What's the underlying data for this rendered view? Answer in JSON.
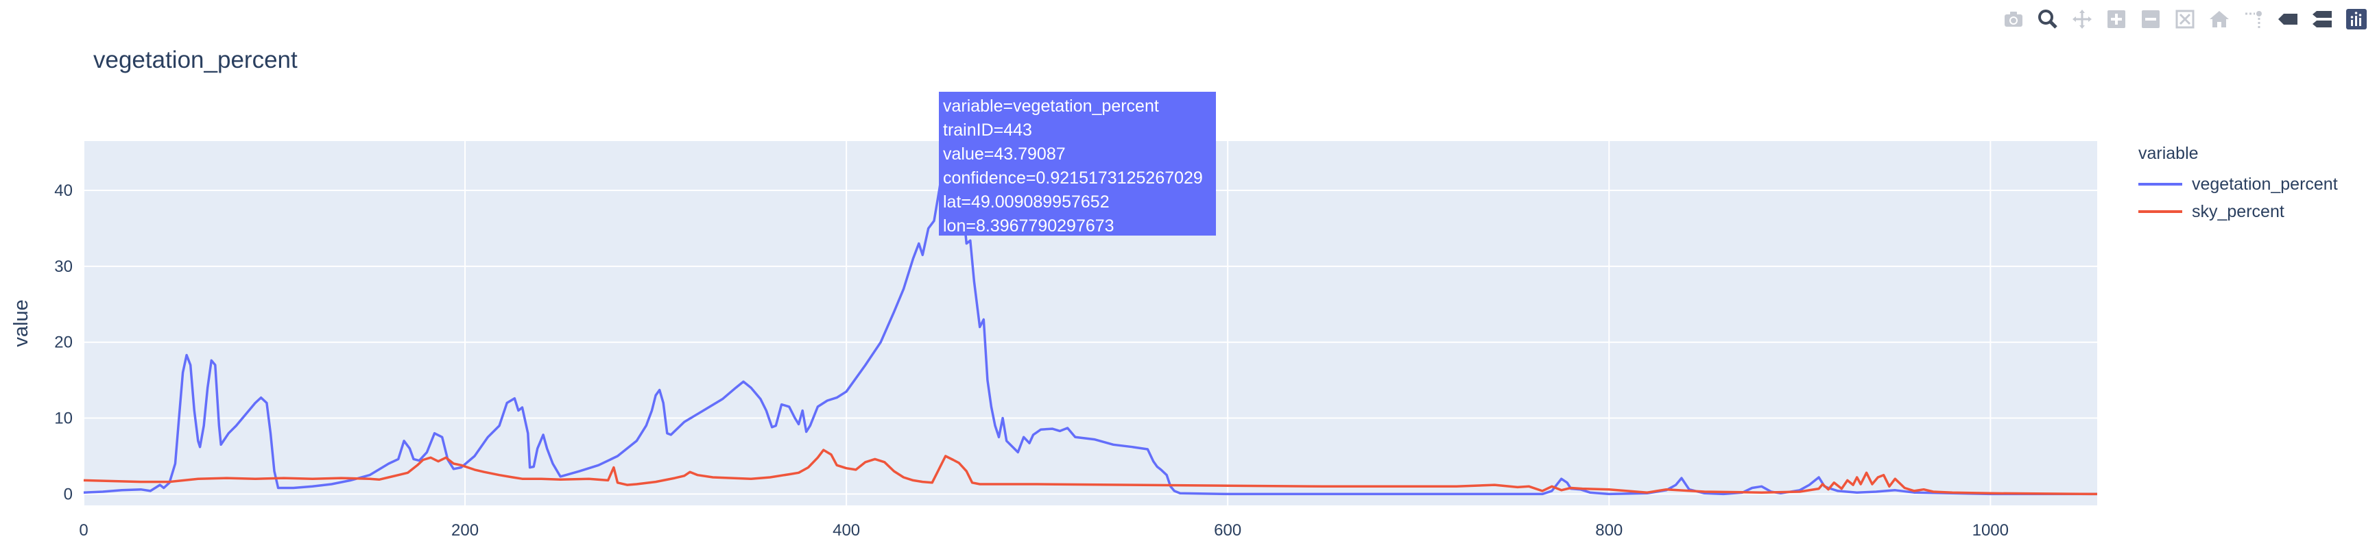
{
  "chart_data": {
    "type": "line",
    "title": "vegetation_percent",
    "xlabel": "",
    "ylabel": "value",
    "xlim": [
      0,
      1056
    ],
    "ylim": [
      -1.5,
      46.5
    ],
    "x_ticks": [
      0,
      200,
      400,
      600,
      800,
      1000
    ],
    "y_ticks": [
      0,
      10,
      20,
      30,
      40
    ],
    "legend_title": "variable",
    "legend_position": "right",
    "grid": true,
    "series": [
      {
        "name": "vegetation_percent",
        "color": "#636efa",
        "points": [
          [
            0,
            0.2
          ],
          [
            10,
            0.3
          ],
          [
            20,
            0.5
          ],
          [
            30,
            0.6
          ],
          [
            35,
            0.4
          ],
          [
            40,
            1.2
          ],
          [
            42,
            0.8
          ],
          [
            45,
            1.5
          ],
          [
            48,
            4
          ],
          [
            50,
            10
          ],
          [
            52,
            16
          ],
          [
            54,
            18.3
          ],
          [
            56,
            17
          ],
          [
            58,
            11
          ],
          [
            60,
            7
          ],
          [
            61,
            6.2
          ],
          [
            63,
            9
          ],
          [
            65,
            14
          ],
          [
            67,
            17.6
          ],
          [
            69,
            17
          ],
          [
            70,
            13
          ],
          [
            71,
            9
          ],
          [
            72,
            6.5
          ],
          [
            76,
            8
          ],
          [
            80,
            9
          ],
          [
            85,
            10.5
          ],
          [
            90,
            12
          ],
          [
            93,
            12.7
          ],
          [
            96,
            12
          ],
          [
            98,
            8
          ],
          [
            100,
            3
          ],
          [
            102,
            0.8
          ],
          [
            110,
            0.8
          ],
          [
            120,
            1.0
          ],
          [
            130,
            1.3
          ],
          [
            140,
            1.8
          ],
          [
            150,
            2.5
          ],
          [
            160,
            4
          ],
          [
            165,
            4.6
          ],
          [
            168,
            7
          ],
          [
            171,
            6
          ],
          [
            173,
            4.6
          ],
          [
            176,
            4.4
          ],
          [
            180,
            5.5
          ],
          [
            184,
            8
          ],
          [
            188,
            7.5
          ],
          [
            191,
            4.5
          ],
          [
            194,
            3.3
          ],
          [
            198,
            3.5
          ],
          [
            205,
            5
          ],
          [
            212,
            7.5
          ],
          [
            218,
            9
          ],
          [
            222,
            12
          ],
          [
            226,
            12.6
          ],
          [
            228,
            11
          ],
          [
            230,
            11.4
          ],
          [
            233,
            8
          ],
          [
            234,
            3.5
          ],
          [
            236,
            3.6
          ],
          [
            238,
            6
          ],
          [
            241,
            7.8
          ],
          [
            243,
            6
          ],
          [
            246,
            4
          ],
          [
            250,
            2.3
          ],
          [
            260,
            3
          ],
          [
            270,
            3.8
          ],
          [
            280,
            5
          ],
          [
            290,
            7
          ],
          [
            295,
            9
          ],
          [
            298,
            11
          ],
          [
            300,
            13
          ],
          [
            302,
            13.7
          ],
          [
            304,
            12
          ],
          [
            306,
            8
          ],
          [
            308,
            7.8
          ],
          [
            315,
            9.5
          ],
          [
            325,
            11
          ],
          [
            335,
            12.5
          ],
          [
            342,
            14
          ],
          [
            346,
            14.8
          ],
          [
            350,
            14
          ],
          [
            355,
            12.5
          ],
          [
            358,
            11
          ],
          [
            361,
            8.8
          ],
          [
            363,
            9
          ],
          [
            366,
            11.8
          ],
          [
            370,
            11.5
          ],
          [
            373,
            10
          ],
          [
            375,
            9.2
          ],
          [
            377,
            11
          ],
          [
            379,
            8.2
          ],
          [
            381,
            9
          ],
          [
            385,
            11.5
          ],
          [
            390,
            12.3
          ],
          [
            395,
            12.7
          ],
          [
            400,
            13.5
          ],
          [
            410,
            17
          ],
          [
            418,
            20
          ],
          [
            425,
            24
          ],
          [
            430,
            27
          ],
          [
            435,
            31
          ],
          [
            438,
            33
          ],
          [
            440,
            31.5
          ],
          [
            443,
            35
          ],
          [
            446,
            36
          ],
          [
            448,
            39
          ],
          [
            450,
            42
          ],
          [
            453,
            43.8
          ],
          [
            455,
            41
          ],
          [
            458,
            39
          ],
          [
            461,
            38
          ],
          [
            463,
            33
          ],
          [
            465,
            33.4
          ],
          [
            467,
            28
          ],
          [
            470,
            22
          ],
          [
            472,
            23
          ],
          [
            474,
            15
          ],
          [
            476,
            11.5
          ],
          [
            478,
            9
          ],
          [
            480,
            7.5
          ],
          [
            482,
            10
          ],
          [
            484,
            7
          ],
          [
            488,
            6
          ],
          [
            490,
            5.5
          ],
          [
            493,
            7.5
          ],
          [
            496,
            6.7
          ],
          [
            498,
            7.8
          ],
          [
            502,
            8.5
          ],
          [
            508,
            8.6
          ],
          [
            512,
            8.3
          ],
          [
            516,
            8.7
          ],
          [
            520,
            7.5
          ],
          [
            530,
            7.2
          ],
          [
            540,
            6.5
          ],
          [
            550,
            6.2
          ],
          [
            558,
            5.9
          ],
          [
            561,
            4.3
          ],
          [
            563,
            3.6
          ],
          [
            565,
            3.2
          ],
          [
            568,
            2.5
          ],
          [
            570,
            1.0
          ],
          [
            572,
            0.4
          ],
          [
            575,
            0.1
          ],
          [
            600,
            0.0
          ],
          [
            700,
            0.0
          ],
          [
            765,
            0.0
          ],
          [
            770,
            0.4
          ],
          [
            775,
            2.0
          ],
          [
            778,
            1.5
          ],
          [
            780,
            0.7
          ],
          [
            785,
            0.6
          ],
          [
            790,
            0.2
          ],
          [
            800,
            0.0
          ],
          [
            820,
            0.1
          ],
          [
            830,
            0.5
          ],
          [
            835,
            1.2
          ],
          [
            838,
            2.1
          ],
          [
            842,
            0.6
          ],
          [
            850,
            0.1
          ],
          [
            860,
            0.0
          ],
          [
            870,
            0.2
          ],
          [
            875,
            0.8
          ],
          [
            880,
            1.0
          ],
          [
            885,
            0.3
          ],
          [
            890,
            0.1
          ],
          [
            900,
            0.5
          ],
          [
            905,
            1.2
          ],
          [
            910,
            2.2
          ],
          [
            913,
            1.0
          ],
          [
            915,
            0.8
          ],
          [
            920,
            0.4
          ],
          [
            930,
            0.2
          ],
          [
            940,
            0.3
          ],
          [
            950,
            0.5
          ],
          [
            960,
            0.2
          ],
          [
            1000,
            0.0
          ],
          [
            1056,
            0.0
          ]
        ]
      },
      {
        "name": "sky_percent",
        "color": "#ef553b",
        "points": [
          [
            0,
            1.8
          ],
          [
            15,
            1.7
          ],
          [
            30,
            1.6
          ],
          [
            45,
            1.6
          ],
          [
            60,
            2.0
          ],
          [
            75,
            2.1
          ],
          [
            90,
            2.0
          ],
          [
            105,
            2.1
          ],
          [
            120,
            2.0
          ],
          [
            135,
            2.1
          ],
          [
            150,
            2.0
          ],
          [
            155,
            1.9
          ],
          [
            160,
            2.2
          ],
          [
            165,
            2.5
          ],
          [
            170,
            2.8
          ],
          [
            175,
            3.8
          ],
          [
            178,
            4.5
          ],
          [
            182,
            4.8
          ],
          [
            186,
            4.3
          ],
          [
            190,
            4.8
          ],
          [
            194,
            4.0
          ],
          [
            198,
            3.8
          ],
          [
            205,
            3.2
          ],
          [
            210,
            2.9
          ],
          [
            218,
            2.5
          ],
          [
            225,
            2.2
          ],
          [
            230,
            2.0
          ],
          [
            240,
            2.0
          ],
          [
            250,
            1.9
          ],
          [
            265,
            2.0
          ],
          [
            275,
            1.8
          ],
          [
            278,
            3.5
          ],
          [
            280,
            1.5
          ],
          [
            285,
            1.2
          ],
          [
            290,
            1.3
          ],
          [
            300,
            1.6
          ],
          [
            310,
            2.1
          ],
          [
            315,
            2.4
          ],
          [
            318,
            2.9
          ],
          [
            322,
            2.5
          ],
          [
            330,
            2.2
          ],
          [
            340,
            2.1
          ],
          [
            350,
            2.0
          ],
          [
            360,
            2.2
          ],
          [
            370,
            2.6
          ],
          [
            375,
            2.8
          ],
          [
            380,
            3.5
          ],
          [
            385,
            4.8
          ],
          [
            388,
            5.8
          ],
          [
            392,
            5.2
          ],
          [
            395,
            3.8
          ],
          [
            400,
            3.4
          ],
          [
            405,
            3.2
          ],
          [
            410,
            4.2
          ],
          [
            415,
            4.6
          ],
          [
            420,
            4.2
          ],
          [
            425,
            3.0
          ],
          [
            430,
            2.2
          ],
          [
            435,
            1.8
          ],
          [
            440,
            1.6
          ],
          [
            445,
            1.5
          ],
          [
            448,
            3.0
          ],
          [
            452,
            5.0
          ],
          [
            456,
            4.5
          ],
          [
            459,
            4.1
          ],
          [
            463,
            3.0
          ],
          [
            466,
            1.5
          ],
          [
            470,
            1.3
          ],
          [
            500,
            1.3
          ],
          [
            550,
            1.2
          ],
          [
            600,
            1.1
          ],
          [
            650,
            1.0
          ],
          [
            700,
            1.0
          ],
          [
            720,
            1.0
          ],
          [
            740,
            1.2
          ],
          [
            752,
            0.9
          ],
          [
            758,
            1.0
          ],
          [
            765,
            0.4
          ],
          [
            770,
            1.0
          ],
          [
            775,
            0.5
          ],
          [
            780,
            0.8
          ],
          [
            786,
            0.7
          ],
          [
            800,
            0.6
          ],
          [
            820,
            0.2
          ],
          [
            830,
            0.6
          ],
          [
            850,
            0.3
          ],
          [
            880,
            0.2
          ],
          [
            900,
            0.3
          ],
          [
            910,
            0.7
          ],
          [
            912,
            1.3
          ],
          [
            915,
            0.6
          ],
          [
            918,
            1.5
          ],
          [
            922,
            0.7
          ],
          [
            925,
            1.8
          ],
          [
            928,
            1.2
          ],
          [
            930,
            2.2
          ],
          [
            932,
            1.3
          ],
          [
            935,
            2.8
          ],
          [
            938,
            1.3
          ],
          [
            941,
            2.2
          ],
          [
            944,
            2.5
          ],
          [
            947,
            1.0
          ],
          [
            950,
            2.0
          ],
          [
            955,
            0.8
          ],
          [
            960,
            0.4
          ],
          [
            965,
            0.6
          ],
          [
            970,
            0.3
          ],
          [
            980,
            0.2
          ],
          [
            1000,
            0.1
          ],
          [
            1056,
            0.0
          ]
        ]
      }
    ],
    "hover": {
      "lines": [
        "variable=vegetation_percent",
        "trainID=443",
        "value=43.79087",
        "confidence=0.9215173125267029",
        "lat=49.009089957652",
        "lon=8.3967790297673"
      ]
    }
  },
  "toolbar": [
    "camera-icon",
    "zoom-icon",
    "pan-icon",
    "zoom-in-icon",
    "zoom-out-icon",
    "autoscale-icon",
    "home-icon",
    "spike-lines-icon",
    "hover-closest-icon",
    "hover-compare-icon",
    "plotly-logo-icon"
  ]
}
